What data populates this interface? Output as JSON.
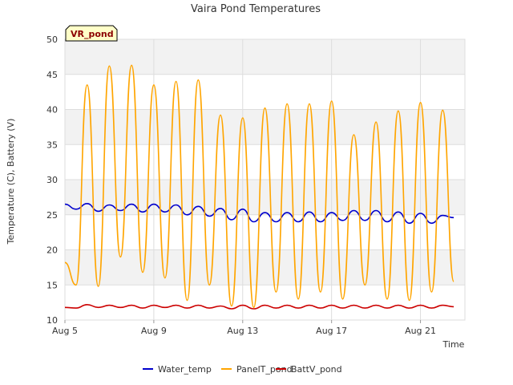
{
  "chart_data": {
    "type": "line",
    "title": "Vaira Pond Temperatures",
    "xlabel": "Time",
    "ylabel": "Temperature (C), Battery (V)",
    "badge": "VR_pond",
    "xlim": [
      "2023-08-05",
      "2023-08-23"
    ],
    "ylim": [
      10,
      50
    ],
    "x_ticks": [
      "Aug 5",
      "Aug 9",
      "Aug 13",
      "Aug 17",
      "Aug 21"
    ],
    "y_ticks": [
      10,
      15,
      20,
      25,
      30,
      35,
      40,
      45,
      50
    ],
    "grid": true,
    "legend_position": "bottom",
    "x_start": "2023-08-05",
    "x_step_days": 0.5,
    "series": [
      {
        "name": "Water_temp",
        "color": "#0000cc",
        "values": [
          26.5,
          25.8,
          26.6,
          25.5,
          26.4,
          25.6,
          26.5,
          25.4,
          26.5,
          25.4,
          26.4,
          25.0,
          26.2,
          24.8,
          25.9,
          24.3,
          25.8,
          24.0,
          25.3,
          24.0,
          25.3,
          24.0,
          25.4,
          24.0,
          25.3,
          24.2,
          25.6,
          24.2,
          25.6,
          24.0,
          25.4,
          23.8,
          25.2,
          23.8,
          24.9,
          24.6
        ]
      },
      {
        "name": "PanelT_pond",
        "color": "#ffa500",
        "values": [
          18.2,
          15.0,
          43.5,
          14.8,
          46.2,
          19.0,
          46.3,
          16.8,
          43.5,
          16.0,
          44.0,
          12.8,
          44.2,
          15.0,
          39.2,
          12.0,
          38.8,
          11.8,
          40.2,
          14.0,
          40.8,
          13.0,
          40.8,
          14.0,
          41.2,
          13.0,
          36.4,
          15.0,
          38.2,
          13.0,
          39.8,
          12.8,
          41.0,
          14.0,
          39.9,
          15.5
        ]
      },
      {
        "name": "BattV_pond",
        "color": "#cc0000",
        "values": [
          11.8,
          11.7,
          12.2,
          11.8,
          12.1,
          11.8,
          12.1,
          11.7,
          12.1,
          11.8,
          12.1,
          11.7,
          12.1,
          11.7,
          12.0,
          11.6,
          12.1,
          11.6,
          12.1,
          11.7,
          12.1,
          11.7,
          12.1,
          11.7,
          12.1,
          11.7,
          12.1,
          11.7,
          12.1,
          11.7,
          12.1,
          11.7,
          12.1,
          11.7,
          12.1,
          11.9
        ]
      }
    ]
  }
}
